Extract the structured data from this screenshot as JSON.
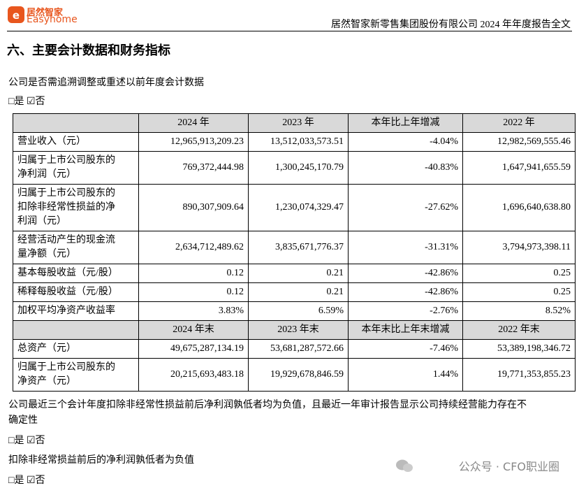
{
  "header": {
    "logo_cn": "居然智家",
    "logo_en": "Easyhome",
    "title": "居然智家新零售集团股份有限公司 2024 年年度报告全文"
  },
  "section_title": "六、主要会计数据和财务指标",
  "question1": "公司是否需追溯调整或重述以前年度会计数据",
  "answer1": "□是 ☑否",
  "table": {
    "header1": [
      "2024 年",
      "2023 年",
      "本年比上年增减",
      "2022 年"
    ],
    "rows1": [
      [
        [
          "营业收入（元）"
        ],
        "12,965,913,209.23",
        "13,512,033,573.51",
        "-4.04%",
        "12,982,569,555.46"
      ],
      [
        [
          "归属于上市公司股东的",
          "净利润（元）"
        ],
        "769,372,444.98",
        "1,300,245,170.79",
        "-40.83%",
        "1,647,941,655.59"
      ],
      [
        [
          "归属于上市公司股东的",
          "扣除非经常性损益的净",
          "利润（元）"
        ],
        "890,307,909.64",
        "1,230,074,329.47",
        "-27.62%",
        "1,696,640,638.80"
      ],
      [
        [
          "经营活动产生的现金流",
          "量净额（元）"
        ],
        "2,634,712,489.62",
        "3,835,671,776.37",
        "-31.31%",
        "3,794,973,398.11"
      ],
      [
        [
          "基本每股收益（元/股）"
        ],
        "0.12",
        "0.21",
        "-42.86%",
        "0.25"
      ],
      [
        [
          "稀释每股收益（元/股）"
        ],
        "0.12",
        "0.21",
        "-42.86%",
        "0.25"
      ],
      [
        [
          "加权平均净资产收益率"
        ],
        "3.83%",
        "6.59%",
        "-2.76%",
        "8.52%"
      ]
    ],
    "header2": [
      "2024 年末",
      "2023 年末",
      "本年末比上年末增减",
      "2022 年末"
    ],
    "rows2": [
      [
        [
          "总资产（元）"
        ],
        "49,675,287,134.19",
        "53,681,287,572.66",
        "-7.46%",
        "53,389,198,346.72"
      ],
      [
        [
          "归属于上市公司股东的",
          "净资产（元）"
        ],
        "20,215,693,483.18",
        "19,929,678,846.59",
        "1.44%",
        "19,771,353,855.23"
      ]
    ]
  },
  "question2": [
    "公司最近三个会计年度扣除非经常性损益前后净利润孰低者均为负值，且最近一年审计报告显示公司持续经营能力存在不",
    "确定性"
  ],
  "answer2": "□是 ☑否",
  "question3": "扣除非经常损益前后的净利润孰低者为负值",
  "answer3": "□是 ☑否",
  "watermark": "公众号 · CFO职业圈"
}
